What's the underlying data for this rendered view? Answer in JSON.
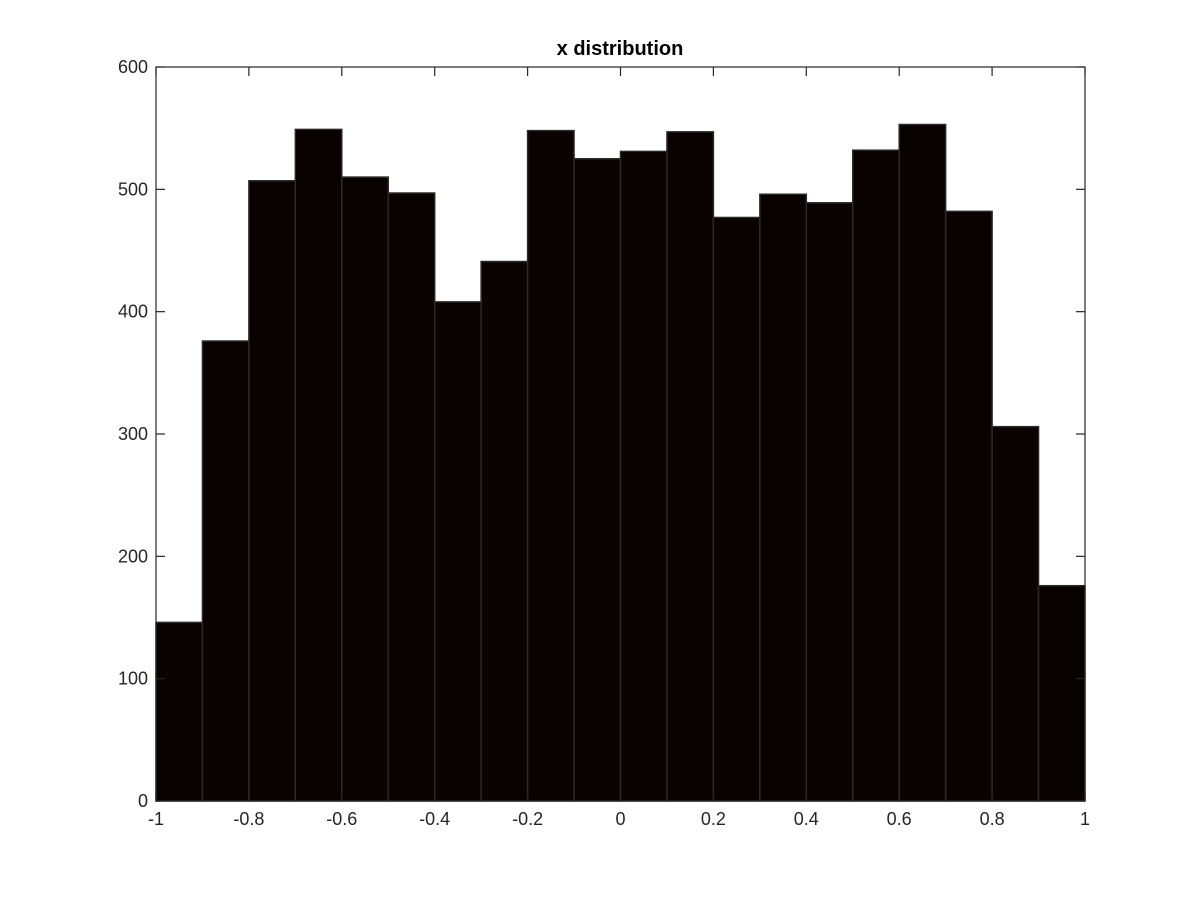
{
  "chart_data": {
    "type": "bar",
    "title": "x distribution",
    "xlabel": "",
    "ylabel": "",
    "xlim": [
      -1,
      1
    ],
    "ylim": [
      0,
      600
    ],
    "bin_edges": [
      -1,
      -0.9,
      -0.8,
      -0.7,
      -0.6,
      -0.5,
      -0.4,
      -0.3,
      -0.2,
      -0.1,
      0,
      0.1,
      0.2,
      0.3,
      0.4,
      0.5,
      0.6,
      0.7,
      0.8,
      0.9,
      1
    ],
    "values": [
      146,
      376,
      507,
      549,
      510,
      497,
      408,
      441,
      548,
      525,
      531,
      547,
      477,
      496,
      489,
      532,
      553,
      482,
      306,
      176
    ],
    "x_tick_labels": [
      "-1",
      "-0.8",
      "-0.6",
      "-0.4",
      "-0.2",
      "0",
      "0.2",
      "0.4",
      "0.6",
      "0.8",
      "1"
    ],
    "y_tick_labels": [
      "0",
      "100",
      "200",
      "300",
      "400",
      "500",
      "600"
    ],
    "grid": false,
    "legend": "none",
    "colors": {
      "bar_fill": "#0a0101",
      "bar_edge": "#2a2a2a",
      "axis": "#262626",
      "text": "#262626"
    }
  }
}
